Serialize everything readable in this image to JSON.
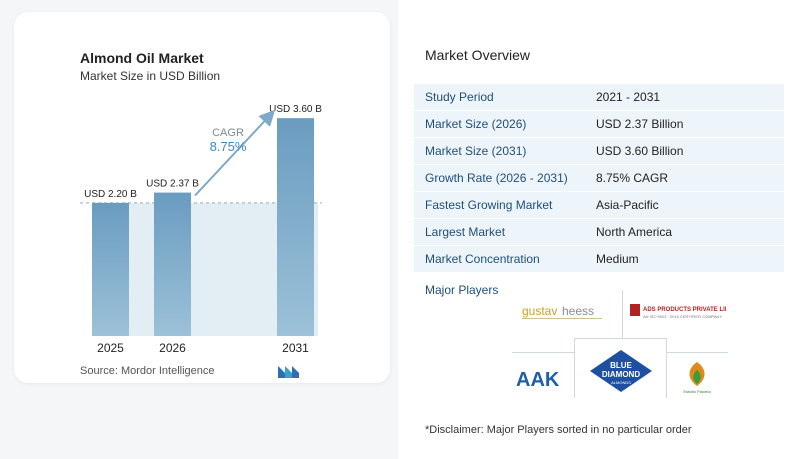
{
  "chart": {
    "title": "Almond Oil Market",
    "subtitle": "Market Size in USD Billion",
    "source": "Source:  Mordor Intelligence",
    "cagr_label": "CAGR",
    "cagr_value": "8.75%",
    "colors": {
      "bar": "#6a9cc0",
      "bar_gradient_end": "#9cc1d8",
      "shaded": "#e3edf4",
      "arrow": "#7fa9c9"
    }
  },
  "chart_data": {
    "type": "bar",
    "categories": [
      "2025",
      "2026",
      "2031"
    ],
    "values": [
      2.2,
      2.37,
      3.6
    ],
    "data_labels": [
      "USD 2.20 B",
      "USD 2.37 B",
      "USD 3.60 B"
    ],
    "title": "Almond Oil Market",
    "subtitle": "Market Size in USD Billion",
    "ylim": [
      0,
      3.9
    ]
  },
  "overview": {
    "title": "Market Overview",
    "rows": [
      {
        "label": "Study Period",
        "value": "2021 - 2031"
      },
      {
        "label": "Market Size (2026)",
        "value": "USD 2.37 Billion"
      },
      {
        "label": "Market Size (2031)",
        "value": "USD 3.60 Billion"
      },
      {
        "label": "Growth Rate (2026 - 2031)",
        "value": "8.75% CAGR"
      },
      {
        "label": "Fastest Growing Market",
        "value": "Asia-Pacific"
      },
      {
        "label": "Largest Market",
        "value": "North America"
      },
      {
        "label": "Market Concentration",
        "value": "Medium"
      }
    ]
  },
  "players": {
    "title": "Major Players",
    "logos": [
      "gustav heess",
      "ADS PRODUCTS PRIVATE LIMITED",
      "AAK",
      "BLUE DIAMOND ALMONDS",
      "Estrato Planeta"
    ],
    "disclaimer": "*Disclaimer: Major Players sorted in no particular order"
  }
}
